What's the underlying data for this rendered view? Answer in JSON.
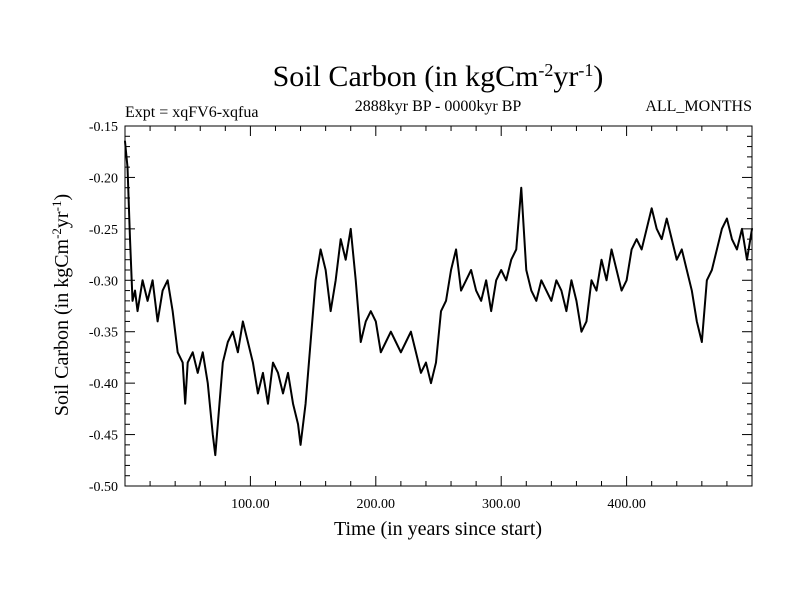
{
  "chart_data": {
    "type": "line",
    "title": {
      "main": "Soil Carbon (in kgCm",
      "sup1": "-2",
      "mid": "yr",
      "sup2": "-1",
      "end": ")"
    },
    "subtitle_left": "Expt = xqFV6-xqfua",
    "subtitle_center": "2888kyr BP - 0000kyr BP",
    "subtitle_right": "ALL_MONTHS",
    "xlabel": "Time (in years since start)",
    "ylabel": {
      "main": "Soil Carbon (in kgCm",
      "sup1": "-2",
      "mid": "yr",
      "sup2": "-1",
      "end": ")"
    },
    "xlim": [
      0,
      500
    ],
    "ylim": [
      -0.5,
      -0.15
    ],
    "xticks": [
      100,
      200,
      300,
      400
    ],
    "xtick_labels": [
      "100.00",
      "200.00",
      "300.00",
      "400.00"
    ],
    "yticks": [
      -0.5,
      -0.45,
      -0.4,
      -0.35,
      -0.3,
      -0.25,
      -0.2,
      -0.15
    ],
    "ytick_labels": [
      "-0.50",
      "-0.45",
      "-0.40",
      "-0.35",
      "-0.30",
      "-0.25",
      "-0.20",
      "-0.15"
    ],
    "series": [
      {
        "name": "Soil Carbon",
        "color": "#000000",
        "x": [
          0,
          2,
          4,
          6,
          8,
          10,
          14,
          18,
          22,
          26,
          30,
          34,
          38,
          42,
          46,
          48,
          50,
          54,
          58,
          62,
          66,
          70,
          72,
          74,
          78,
          82,
          86,
          90,
          94,
          98,
          102,
          106,
          110,
          114,
          118,
          122,
          126,
          130,
          134,
          138,
          140,
          144,
          148,
          152,
          156,
          160,
          164,
          168,
          172,
          176,
          180,
          184,
          188,
          192,
          196,
          200,
          204,
          208,
          212,
          216,
          220,
          224,
          228,
          232,
          236,
          240,
          244,
          248,
          252,
          256,
          260,
          264,
          268,
          272,
          276,
          280,
          284,
          288,
          292,
          296,
          300,
          304,
          308,
          312,
          316,
          320,
          324,
          328,
          332,
          336,
          340,
          344,
          348,
          352,
          356,
          360,
          364,
          368,
          372,
          376,
          380,
          384,
          388,
          392,
          396,
          400,
          404,
          408,
          412,
          416,
          420,
          424,
          428,
          432,
          436,
          440,
          444,
          448,
          452,
          456,
          460,
          464,
          468,
          472,
          476,
          480,
          484,
          488,
          492,
          496,
          500
        ],
        "values": [
          -0.165,
          -0.19,
          -0.26,
          -0.32,
          -0.31,
          -0.33,
          -0.3,
          -0.32,
          -0.3,
          -0.34,
          -0.31,
          -0.3,
          -0.33,
          -0.37,
          -0.38,
          -0.42,
          -0.38,
          -0.37,
          -0.39,
          -0.37,
          -0.4,
          -0.45,
          -0.47,
          -0.44,
          -0.38,
          -0.36,
          -0.35,
          -0.37,
          -0.34,
          -0.36,
          -0.38,
          -0.41,
          -0.39,
          -0.42,
          -0.38,
          -0.39,
          -0.41,
          -0.39,
          -0.42,
          -0.44,
          -0.46,
          -0.42,
          -0.36,
          -0.3,
          -0.27,
          -0.29,
          -0.33,
          -0.3,
          -0.26,
          -0.28,
          -0.25,
          -0.3,
          -0.36,
          -0.34,
          -0.33,
          -0.34,
          -0.37,
          -0.36,
          -0.35,
          -0.36,
          -0.37,
          -0.36,
          -0.35,
          -0.37,
          -0.39,
          -0.38,
          -0.4,
          -0.38,
          -0.33,
          -0.32,
          -0.29,
          -0.27,
          -0.31,
          -0.3,
          -0.29,
          -0.31,
          -0.32,
          -0.3,
          -0.33,
          -0.3,
          -0.29,
          -0.3,
          -0.28,
          -0.27,
          -0.21,
          -0.29,
          -0.31,
          -0.32,
          -0.3,
          -0.31,
          -0.32,
          -0.3,
          -0.31,
          -0.33,
          -0.3,
          -0.32,
          -0.35,
          -0.34,
          -0.3,
          -0.31,
          -0.28,
          -0.3,
          -0.27,
          -0.29,
          -0.31,
          -0.3,
          -0.27,
          -0.26,
          -0.27,
          -0.25,
          -0.23,
          -0.25,
          -0.26,
          -0.24,
          -0.26,
          -0.28,
          -0.27,
          -0.29,
          -0.31,
          -0.34,
          -0.36,
          -0.3,
          -0.29,
          -0.27,
          -0.25,
          -0.24,
          -0.26,
          -0.27,
          -0.25,
          -0.28,
          -0.25
        ]
      }
    ],
    "grid": false
  }
}
